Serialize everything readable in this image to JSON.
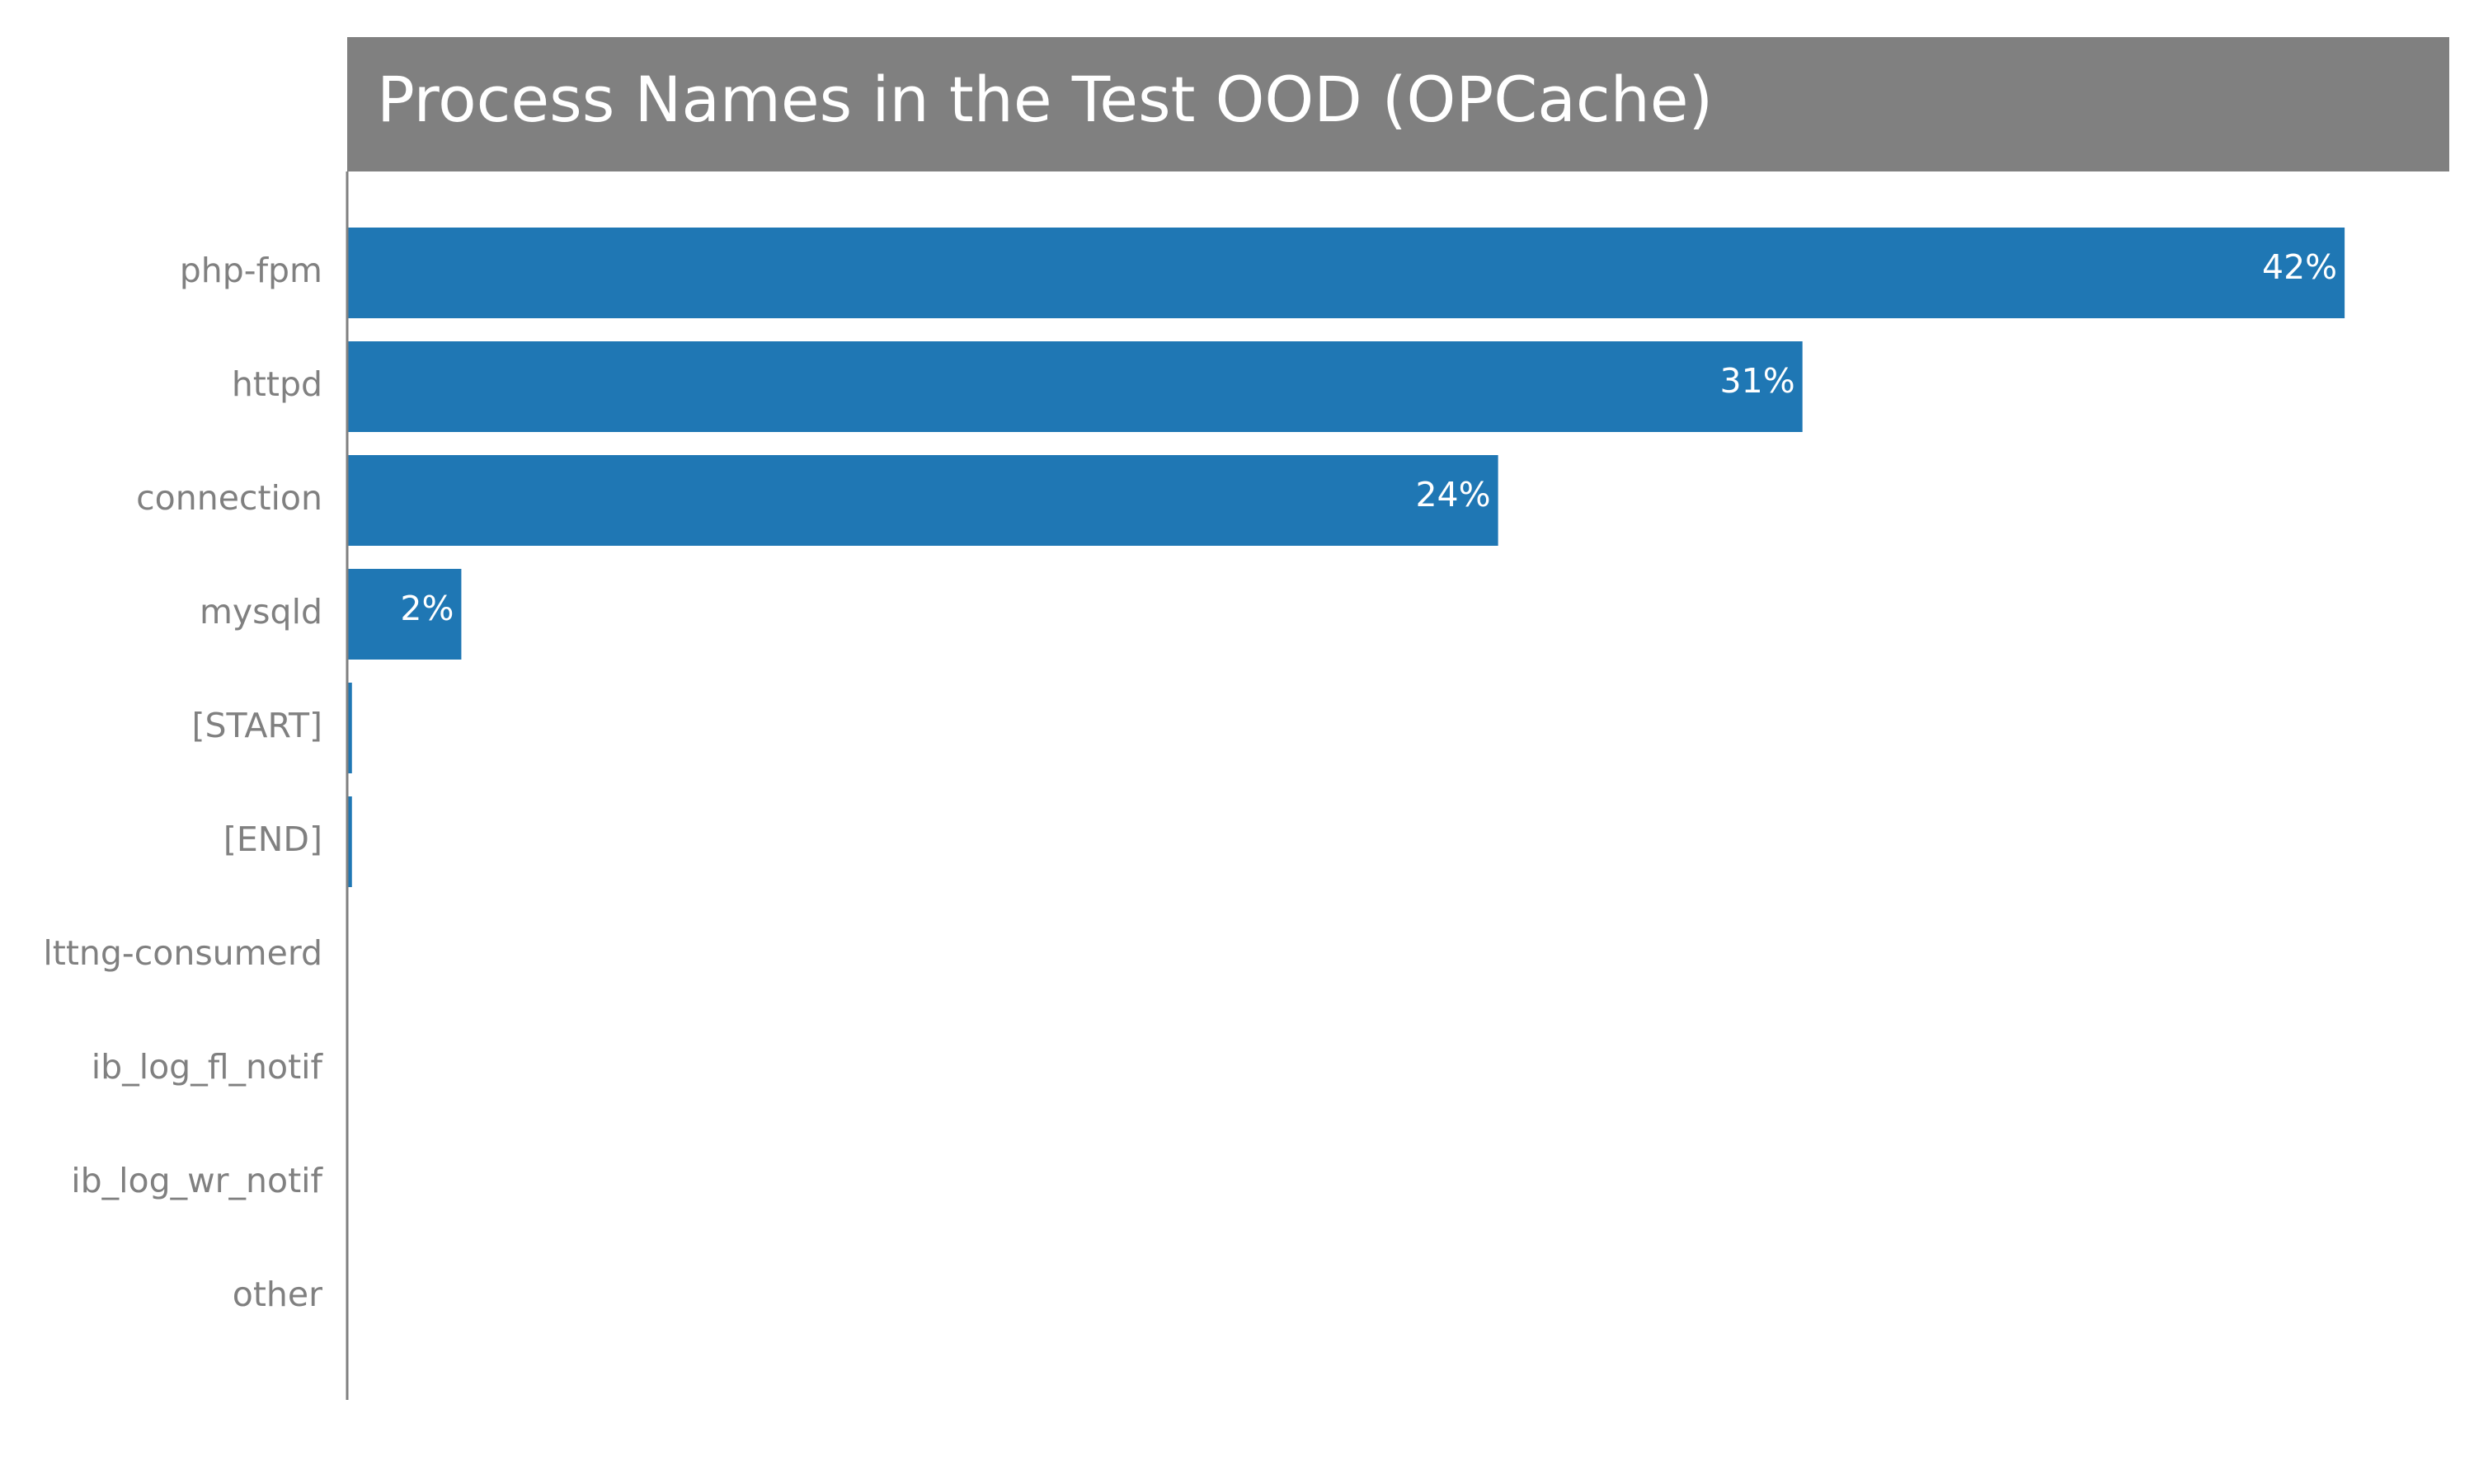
{
  "chart_data": {
    "type": "bar",
    "orientation": "horizontal",
    "title": "Process Names in the Test OOD (OPCache)",
    "categories": [
      "php-fpm",
      "httpd",
      "connection",
      "mysqld",
      "[START]",
      "[END]",
      "lttng-consumerd",
      "ib_log_fl_notif",
      "ib_log_wr_notif",
      "other"
    ],
    "values": [
      42.0,
      30.6,
      24.2,
      2.4,
      0.1,
      0.1,
      0.0,
      0.0,
      0.0,
      0.0
    ],
    "value_labels": [
      "42%",
      "31%",
      "24%",
      "2%",
      "",
      "",
      "",
      "",
      "",
      ""
    ],
    "xlim": [
      0,
      44.2
    ],
    "grid": false,
    "legend": "none",
    "colors": {
      "bar": "#1f77b4",
      "title_band": "#808080",
      "title_text": "#ffffff",
      "axis": "#808080",
      "category_text": "#808080",
      "value_text": "#ffffff"
    }
  }
}
